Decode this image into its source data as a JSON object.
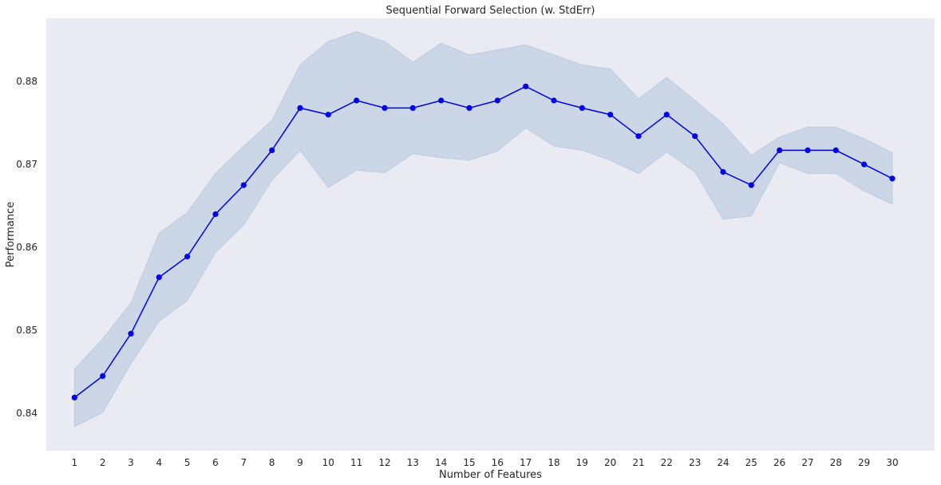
{
  "chart_data": {
    "type": "line",
    "title": "Sequential Forward Selection (w. StdErr)",
    "xlabel": "Number of Features",
    "ylabel": "Performance",
    "x": [
      1,
      2,
      3,
      4,
      5,
      6,
      7,
      8,
      9,
      10,
      11,
      12,
      13,
      14,
      15,
      16,
      17,
      18,
      19,
      20,
      21,
      22,
      23,
      24,
      25,
      26,
      27,
      28,
      29,
      30
    ],
    "xlim": [
      0.0,
      31.5
    ],
    "ylim": [
      0.8355,
      0.8876
    ],
    "yticks": [
      0.84,
      0.85,
      0.86,
      0.87,
      0.88
    ],
    "ytick_labels": [
      "0.84",
      "0.85",
      "0.86",
      "0.87",
      "0.88"
    ],
    "xtick_labels": [
      "1",
      "2",
      "3",
      "4",
      "5",
      "6",
      "7",
      "8",
      "9",
      "10",
      "11",
      "12",
      "13",
      "14",
      "15",
      "16",
      "17",
      "18",
      "19",
      "20",
      "21",
      "22",
      "23",
      "24",
      "25",
      "26",
      "27",
      "28",
      "29",
      "30"
    ],
    "grid": false,
    "series": [
      {
        "values": [
          0.8419,
          0.8445,
          0.8496,
          0.8564,
          0.8589,
          0.864,
          0.8675,
          0.8717,
          0.8768,
          0.876,
          0.8777,
          0.8768,
          0.8768,
          0.8777,
          0.8768,
          0.8777,
          0.8794,
          0.8777,
          0.8768,
          0.876,
          0.8734,
          0.876,
          0.8734,
          0.8691,
          0.8675,
          0.8717,
          0.8717,
          0.8717,
          0.87,
          0.8683
        ],
        "upper": [
          0.8453,
          0.849,
          0.8533,
          0.8617,
          0.8642,
          0.8689,
          0.8722,
          0.8753,
          0.882,
          0.8848,
          0.886,
          0.8848,
          0.8823,
          0.8846,
          0.8832,
          0.8838,
          0.8844,
          0.8832,
          0.882,
          0.8815,
          0.8779,
          0.8805,
          0.8777,
          0.8749,
          0.8711,
          0.8733,
          0.8745,
          0.8745,
          0.8731,
          0.8714
        ],
        "lower": [
          0.8384,
          0.8401,
          0.846,
          0.8511,
          0.8536,
          0.8594,
          0.8627,
          0.8681,
          0.8717,
          0.8672,
          0.8693,
          0.869,
          0.8713,
          0.8708,
          0.8705,
          0.8716,
          0.8744,
          0.8722,
          0.8717,
          0.8705,
          0.8689,
          0.8715,
          0.8691,
          0.8634,
          0.8638,
          0.8702,
          0.8689,
          0.8689,
          0.8668,
          0.8652
        ]
      }
    ],
    "colors": {
      "line": "#0000ee",
      "marker": "#0000ee",
      "band": "#b0c4de",
      "plot_background": "#eaeaf2",
      "page_background": "#ffffff"
    }
  }
}
